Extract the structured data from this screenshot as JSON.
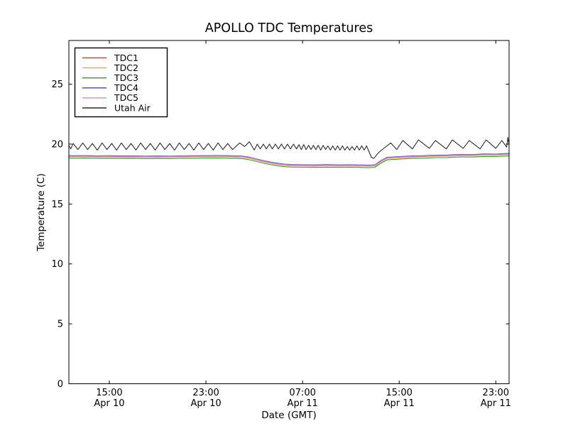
{
  "figure": {
    "background": "#ffffff",
    "axis_color": "#000000"
  },
  "chart_data": {
    "type": "line",
    "title": "APOLLO TDC Temperatures",
    "xlabel": "Date (GMT)",
    "ylabel": "Temperature (C)",
    "grid": false,
    "legend_position": "upper left",
    "x_unit": "hours since Apr 10 00:00 GMT",
    "xlim": [
      11.65,
      48.1
    ],
    "ylim": [
      0,
      28.65
    ],
    "yticks": [
      0,
      5,
      10,
      15,
      20,
      25
    ],
    "xticks": [
      {
        "hour": 15,
        "time": "15:00",
        "date": "Apr 10"
      },
      {
        "hour": 23,
        "time": "23:00",
        "date": "Apr 10"
      },
      {
        "hour": 31,
        "time": "07:00",
        "date": "Apr 11"
      },
      {
        "hour": 39,
        "time": "15:00",
        "date": "Apr 11"
      },
      {
        "hour": 47,
        "time": "23:00",
        "date": "Apr 11"
      }
    ],
    "series": [
      {
        "name": "TDC1",
        "color": "#e03a3a",
        "x": [
          11.65,
          12,
          13,
          14,
          15,
          16,
          17,
          18,
          19,
          20,
          21,
          22,
          23,
          24,
          24.5,
          25,
          25.5,
          26,
          26.5,
          27,
          27.5,
          28,
          28.5,
          29,
          29.5,
          30,
          31,
          32,
          33,
          34,
          35,
          36,
          36.5,
          37,
          37.5,
          38,
          39,
          40,
          41,
          42,
          43,
          44,
          45,
          46,
          47,
          48,
          48.1
        ],
        "y": [
          18.97,
          18.95,
          18.96,
          18.94,
          18.95,
          18.93,
          18.94,
          18.92,
          18.93,
          18.92,
          18.94,
          18.95,
          18.96,
          18.97,
          18.96,
          18.95,
          18.94,
          18.92,
          18.85,
          18.73,
          18.61,
          18.49,
          18.39,
          18.31,
          18.25,
          18.22,
          18.2,
          18.19,
          18.21,
          18.19,
          18.2,
          18.18,
          18.17,
          18.2,
          18.55,
          18.82,
          18.88,
          18.93,
          18.95,
          19.0,
          19.01,
          19.06,
          19.05,
          19.1,
          19.09,
          19.14,
          19.14
        ]
      },
      {
        "name": "TDC2",
        "color": "#f2a63a",
        "x": [
          11.65,
          12,
          13,
          14,
          15,
          16,
          17,
          18,
          19,
          20,
          21,
          22,
          23,
          24,
          24.5,
          25,
          25.5,
          26,
          26.5,
          27,
          27.5,
          28,
          28.5,
          29,
          29.5,
          30,
          31,
          32,
          33,
          34,
          35,
          36,
          36.5,
          37,
          37.5,
          38,
          39,
          40,
          41,
          42,
          43,
          44,
          45,
          46,
          47,
          48,
          48.1
        ],
        "y": [
          18.95,
          18.93,
          18.94,
          18.92,
          18.93,
          18.91,
          18.92,
          18.9,
          18.91,
          18.9,
          18.92,
          18.93,
          18.94,
          18.95,
          18.94,
          18.93,
          18.92,
          18.9,
          18.83,
          18.71,
          18.59,
          18.47,
          18.37,
          18.29,
          18.23,
          18.2,
          18.18,
          18.17,
          18.19,
          18.17,
          18.18,
          18.16,
          18.15,
          18.18,
          18.53,
          18.8,
          18.86,
          18.91,
          18.93,
          18.98,
          18.99,
          19.04,
          19.03,
          19.08,
          19.07,
          19.12,
          19.12
        ]
      },
      {
        "name": "TDC3",
        "color": "#369636",
        "x": [
          11.65,
          12,
          13,
          14,
          15,
          16,
          17,
          18,
          19,
          20,
          21,
          22,
          23,
          24,
          24.5,
          25,
          25.5,
          26,
          26.5,
          27,
          27.5,
          28,
          28.5,
          29,
          29.5,
          30,
          31,
          32,
          33,
          34,
          35,
          36,
          36.5,
          37,
          37.5,
          38,
          39,
          40,
          41,
          42,
          43,
          44,
          45,
          46,
          47,
          48,
          48.1
        ],
        "y": [
          18.84,
          18.82,
          18.83,
          18.81,
          18.82,
          18.8,
          18.81,
          18.79,
          18.8,
          18.79,
          18.81,
          18.82,
          18.83,
          18.84,
          18.83,
          18.82,
          18.81,
          18.79,
          18.72,
          18.6,
          18.48,
          18.36,
          18.26,
          18.18,
          18.12,
          18.09,
          18.07,
          18.06,
          18.08,
          18.06,
          18.07,
          18.05,
          18.04,
          18.07,
          18.42,
          18.69,
          18.75,
          18.8,
          18.82,
          18.87,
          18.88,
          18.93,
          18.92,
          18.97,
          18.96,
          19.01,
          19.01
        ]
      },
      {
        "name": "TDC4",
        "color": "#3c46d8",
        "x": [
          11.65,
          12,
          13,
          14,
          15,
          16,
          17,
          18,
          19,
          20,
          21,
          22,
          23,
          24,
          24.5,
          25,
          25.5,
          26,
          26.5,
          27,
          27.5,
          28,
          28.5,
          29,
          29.5,
          30,
          31,
          32,
          33,
          34,
          35,
          36,
          36.5,
          37,
          37.5,
          38,
          39,
          40,
          41,
          42,
          43,
          44,
          45,
          46,
          47,
          48,
          48.1
        ],
        "y": [
          19.05,
          19.03,
          19.04,
          19.02,
          19.03,
          19.01,
          19.02,
          19.0,
          19.01,
          19.0,
          19.02,
          19.03,
          19.04,
          19.05,
          19.04,
          19.03,
          19.02,
          19.0,
          18.93,
          18.81,
          18.69,
          18.57,
          18.47,
          18.39,
          18.33,
          18.3,
          18.28,
          18.27,
          18.29,
          18.27,
          18.28,
          18.26,
          18.25,
          18.28,
          18.63,
          18.9,
          18.96,
          19.01,
          19.03,
          19.08,
          19.09,
          19.14,
          19.13,
          19.18,
          19.17,
          19.22,
          19.22
        ]
      },
      {
        "name": "TDC5",
        "color": "#c98ad6",
        "x": [
          11.65,
          12,
          13,
          14,
          15,
          16,
          17,
          18,
          19,
          20,
          21,
          22,
          23,
          24,
          24.5,
          25,
          25.5,
          26,
          26.5,
          27,
          27.5,
          28,
          28.5,
          29,
          29.5,
          30,
          31,
          32,
          33,
          34,
          35,
          36,
          36.5,
          37,
          37.5,
          38,
          39,
          40,
          41,
          42,
          43,
          44,
          45,
          46,
          47,
          48,
          48.1
        ],
        "y": [
          19.01,
          18.99,
          19.0,
          18.98,
          18.99,
          18.97,
          18.98,
          18.96,
          18.97,
          18.96,
          18.98,
          18.99,
          19.0,
          19.01,
          19.0,
          18.99,
          18.98,
          18.96,
          18.89,
          18.77,
          18.65,
          18.53,
          18.43,
          18.35,
          18.29,
          18.26,
          18.24,
          18.23,
          18.25,
          18.23,
          18.24,
          18.22,
          18.21,
          18.24,
          18.59,
          18.86,
          18.92,
          18.97,
          18.99,
          19.04,
          19.05,
          19.1,
          19.09,
          19.14,
          19.13,
          19.18,
          19.18
        ]
      },
      {
        "name": "Utah Air",
        "color": "#2b2b2b",
        "x": [
          11.65,
          11.8,
          12.0,
          12.4,
          12.8,
          13.2,
          13.6,
          14.0,
          14.4,
          14.8,
          15.2,
          15.6,
          16.0,
          16.4,
          16.8,
          17.2,
          17.6,
          18.0,
          18.4,
          18.8,
          19.2,
          19.6,
          20.0,
          20.4,
          20.8,
          21.2,
          21.6,
          22.0,
          22.4,
          22.8,
          23.2,
          23.6,
          24.0,
          24.4,
          24.8,
          25.2,
          25.8,
          26.2,
          26.6,
          27.0,
          27.25,
          27.5,
          27.75,
          28.0,
          28.25,
          28.5,
          28.75,
          29.0,
          29.25,
          29.5,
          29.75,
          30.0,
          30.25,
          30.5,
          30.7,
          30.9,
          31.1,
          31.3,
          31.5,
          31.7,
          31.9,
          32.1,
          32.3,
          32.5,
          32.7,
          32.9,
          33.1,
          33.3,
          33.5,
          33.7,
          33.9,
          34.1,
          34.3,
          34.5,
          34.7,
          34.9,
          35.1,
          35.3,
          35.5,
          35.7,
          35.9,
          36.1,
          36.3,
          36.7,
          36.9,
          37.3,
          37.8,
          38.3,
          38.8,
          39.3,
          40.1,
          40.6,
          41.5,
          42.0,
          42.9,
          43.4,
          44.3,
          44.8,
          45.7,
          46.2,
          47.0,
          47.5,
          47.9,
          48.0,
          48.1
        ],
        "y": [
          19.9,
          19.6,
          20.05,
          19.55,
          20.1,
          19.55,
          20.05,
          19.5,
          20.1,
          19.55,
          20.05,
          19.5,
          20.1,
          19.55,
          20.05,
          19.5,
          20.1,
          19.55,
          20.05,
          19.5,
          20.1,
          19.55,
          20.05,
          19.5,
          20.1,
          19.55,
          20.05,
          19.5,
          20.1,
          19.55,
          20.05,
          19.5,
          20.1,
          19.55,
          20.05,
          19.55,
          20.1,
          19.8,
          20.2,
          19.5,
          20.0,
          19.6,
          20.0,
          19.6,
          20.0,
          19.6,
          20.0,
          19.6,
          20.0,
          19.6,
          20.0,
          19.6,
          20.0,
          19.6,
          19.95,
          19.55,
          19.95,
          19.55,
          19.9,
          19.55,
          19.9,
          19.55,
          19.9,
          19.5,
          19.9,
          19.55,
          19.85,
          19.5,
          19.85,
          19.5,
          19.85,
          19.5,
          19.85,
          19.5,
          19.8,
          19.5,
          19.8,
          19.5,
          19.85,
          19.5,
          19.85,
          19.5,
          19.85,
          18.9,
          18.8,
          19.3,
          19.7,
          20.1,
          19.55,
          20.3,
          19.6,
          20.35,
          19.65,
          20.3,
          19.6,
          20.35,
          19.65,
          20.3,
          19.6,
          20.35,
          19.65,
          20.3,
          19.75,
          20.55,
          19.9
        ]
      }
    ]
  }
}
